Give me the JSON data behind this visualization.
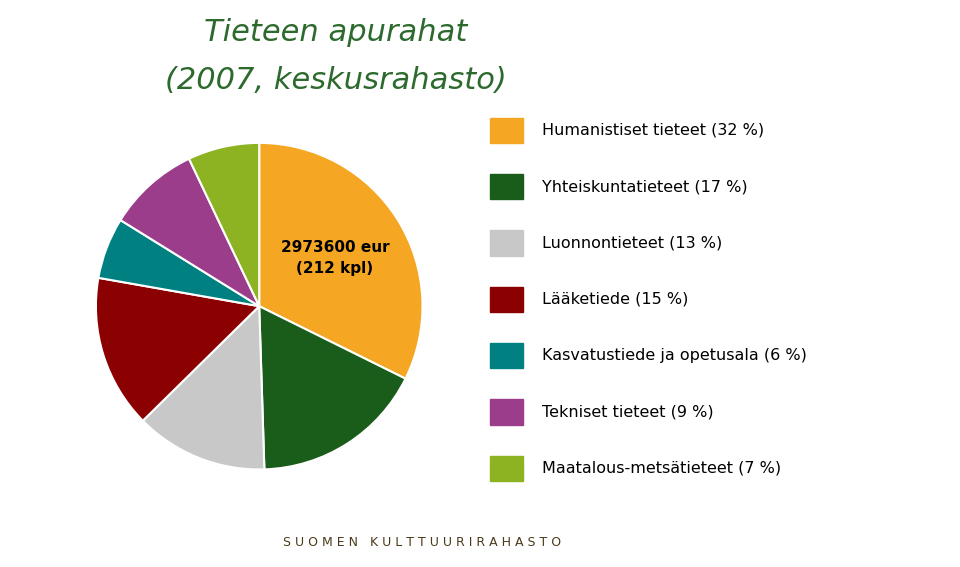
{
  "title_line1": "Tieteen apurahat",
  "title_line2": "(2007, keskusrahasto)",
  "title_color": "#2d6a2d",
  "center_text_line1": "2973600 eur",
  "center_text_line2": "(212 kpl)",
  "slices": [
    32,
    17,
    13,
    15,
    6,
    9,
    7
  ],
  "colors": [
    "#F5A623",
    "#1a5c1a",
    "#c8c8c8",
    "#8b0000",
    "#008080",
    "#9b3d8b",
    "#8db322"
  ],
  "labels": [
    "Humanistiset tieteet (32 %)",
    "Yhteiskuntatieteet (17 %)",
    "Luonnontieteet (13 %)",
    "Lääketiede (15 %)",
    "Kasvatustiede ja opetusala (6 %)",
    "Tekniset tieteet (9 %)",
    "Maatalous-metsätieteet (7 %)"
  ],
  "footer_bg": "#d4b483",
  "footer_text": "S U O M E N   K U L T T U U R I R A H A S T O",
  "footer_text_color": "#4a3a1a",
  "background_color": "#ffffff",
  "startangle": 90
}
